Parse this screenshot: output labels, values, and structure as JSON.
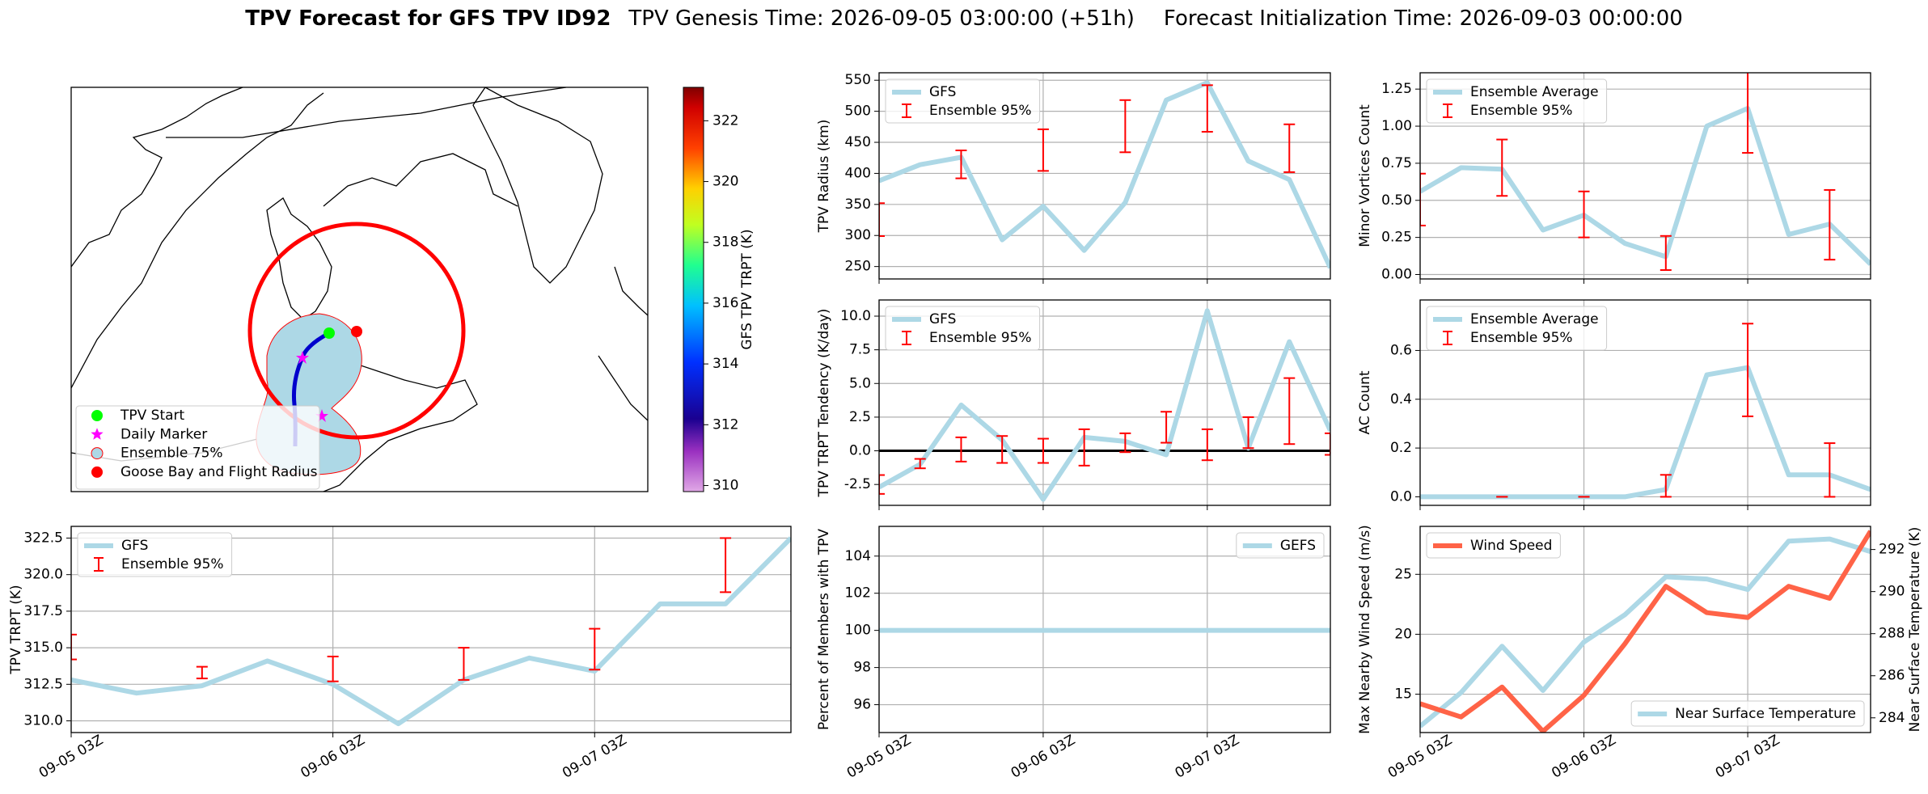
{
  "title": {
    "main": "TPV Forecast for GFS TPV ID92",
    "genesis": "TPV Genesis Time: 2026-09-05 03:00:00 (+51h)",
    "init": "Forecast Initialization Time: 2026-09-03 00:00:00"
  },
  "chart_data": [
    {
      "type": "map",
      "legend": [
        {
          "name": "TPV Start",
          "color": "#00ff00",
          "marker": "circle"
        },
        {
          "name": "Daily Marker",
          "color": "#ff00ff",
          "marker": "star"
        },
        {
          "name": "Ensemble 75%",
          "color": "#add8e6",
          "marker": "patch"
        },
        {
          "name": "Goose Bay and Flight Radius",
          "color": "#ff0000",
          "marker": "circle"
        }
      ],
      "colorbar": {
        "label": "GFS TPV TRPT (K)",
        "clim": [
          309.8,
          323.1
        ],
        "ticks": [
          310,
          312,
          314,
          316,
          318,
          320,
          322
        ]
      }
    },
    {
      "type": "line",
      "ylabel": "TPV Radius (km)",
      "ylim": [
        230,
        562
      ],
      "yticks": [
        250,
        300,
        350,
        400,
        450,
        500,
        550
      ],
      "xticks": [
        0,
        4,
        8
      ],
      "grid": true,
      "legend": "upper left",
      "series": [
        {
          "name": "GFS",
          "color": "#add8e6",
          "values": [
            388,
            414,
            426,
            293,
            347,
            276,
            353,
            518,
            546,
            420,
            390,
            248
          ]
        }
      ],
      "ensemble": {
        "name": "Ensemble 95%",
        "color": "#ff0000",
        "low": [
          299,
          null,
          392,
          null,
          404,
          null,
          434,
          null,
          467,
          null,
          402,
          null
        ],
        "high": [
          352,
          null,
          437,
          null,
          471,
          null,
          518,
          null,
          542,
          null,
          479,
          null
        ]
      }
    },
    {
      "type": "line",
      "ylabel": "Minor Vortices Count",
      "ylim": [
        -0.03,
        1.36
      ],
      "yticks": [
        {
          "value": 0,
          "label": "0.00"
        },
        0.25,
        {
          "value": 0.5,
          "label": "0.50"
        },
        0.75,
        {
          "value": 1,
          "label": "1.00"
        },
        1.25
      ],
      "xticks": [
        0,
        4,
        8
      ],
      "grid": true,
      "legend": "upper left",
      "series": [
        {
          "name": "Ensemble Average",
          "color": "#add8e6",
          "values": [
            0.56,
            0.72,
            0.71,
            0.3,
            0.4,
            0.21,
            0.12,
            1.0,
            1.12,
            0.27,
            0.34,
            0.07
          ]
        }
      ],
      "ensemble": {
        "name": "Ensemble 95%",
        "color": "#ff0000",
        "low": [
          0.33,
          null,
          0.53,
          null,
          0.25,
          null,
          0.03,
          null,
          0.82,
          null,
          0.1,
          null
        ],
        "high": [
          0.68,
          null,
          0.91,
          null,
          0.56,
          null,
          0.26,
          null,
          1.42,
          null,
          0.57,
          null
        ]
      }
    },
    {
      "type": "line",
      "ylabel": "TPV TRPT Tendency (K/day)",
      "ylim": [
        -4.05,
        11.2
      ],
      "yticks": [
        -2.5,
        {
          "value": 0,
          "label": "0.0"
        },
        2.5,
        {
          "value": 5,
          "label": "5.0"
        },
        7.5,
        {
          "value": 10,
          "label": "10.0"
        }
      ],
      "xticks": [
        0,
        4,
        8
      ],
      "grid": true,
      "legend": "upper left",
      "hline": 0,
      "series": [
        {
          "name": "GFS",
          "color": "#add8e6",
          "values": [
            -2.7,
            -1.0,
            3.4,
            0.8,
            -3.6,
            1.0,
            0.7,
            -0.3,
            10.4,
            0.2,
            8.1,
            1.5
          ]
        }
      ],
      "ensemble": {
        "name": "Ensemble 95%",
        "color": "#ff0000",
        "low": [
          -3.2,
          -1.3,
          -0.8,
          -0.9,
          -0.9,
          -1.1,
          -0.1,
          0.6,
          -0.7,
          0.2,
          0.5,
          -0.3
        ],
        "high": [
          -1.8,
          -0.6,
          1.0,
          1.1,
          0.9,
          1.6,
          1.3,
          2.9,
          1.6,
          2.5,
          5.4,
          1.3
        ]
      }
    },
    {
      "type": "line",
      "ylabel": "AC Count",
      "ylim": [
        -0.035,
        0.807
      ],
      "yticks": [
        {
          "value": 0,
          "label": "0.0"
        },
        0.2,
        0.4,
        0.6
      ],
      "xticks": [
        0,
        4,
        8
      ],
      "grid": true,
      "legend": "upper left",
      "series": [
        {
          "name": "Ensemble Average",
          "color": "#add8e6",
          "values": [
            0,
            0,
            0,
            0,
            0,
            0,
            0.03,
            0.5,
            0.53,
            0.09,
            0.09,
            0.03
          ]
        }
      ],
      "ensemble": {
        "name": "Ensemble 95%",
        "color": "#ff0000",
        "low": [
          null,
          null,
          0,
          null,
          0,
          null,
          0,
          null,
          0.33,
          null,
          0,
          null
        ],
        "high": [
          null,
          null,
          0,
          null,
          0,
          null,
          0.09,
          null,
          0.71,
          null,
          0.22,
          null
        ]
      }
    },
    {
      "type": "line",
      "ylabel": "TPV TRPT (K)",
      "ylim": [
        309.2,
        323.3
      ],
      "yticks": [
        {
          "value": 310,
          "label": "310.0"
        },
        312.5,
        {
          "value": 315,
          "label": "315.0"
        },
        317.5,
        {
          "value": 320,
          "label": "320.0"
        },
        322.5
      ],
      "grid": true,
      "legend": "upper left",
      "categories": [
        "09-05 03Z",
        null,
        null,
        null,
        "09-06 03Z",
        null,
        null,
        null,
        "09-07 03Z",
        null,
        null,
        null
      ],
      "series": [
        {
          "name": "GFS",
          "color": "#add8e6",
          "values": [
            312.8,
            311.9,
            312.4,
            314.1,
            312.5,
            309.8,
            312.8,
            314.3,
            313.4,
            318.0,
            318.0,
            322.5
          ]
        }
      ],
      "ensemble": {
        "name": "Ensemble 95%",
        "color": "#ff0000",
        "low": [
          314.2,
          null,
          312.9,
          null,
          312.7,
          null,
          312.8,
          null,
          313.5,
          null,
          318.8,
          null
        ],
        "high": [
          315.9,
          null,
          313.7,
          null,
          314.4,
          null,
          315.0,
          null,
          316.3,
          null,
          322.5,
          null
        ]
      }
    },
    {
      "type": "line",
      "ylabel": "Percent of Members with TPV",
      "ylim": [
        94.5,
        105.6
      ],
      "yticks": [
        96,
        98,
        100,
        102,
        104
      ],
      "grid": true,
      "legend": "upper right",
      "categories": [
        "09-05 03Z",
        null,
        null,
        null,
        "09-06 03Z",
        null,
        null,
        null,
        "09-07 03Z",
        null,
        null,
        null
      ],
      "series": [
        {
          "name": "GEFS",
          "color": "#add8e6",
          "values": [
            100,
            100,
            100,
            100,
            100,
            100,
            100,
            100,
            100,
            100,
            100,
            100
          ]
        }
      ]
    },
    {
      "type": "line",
      "ylabel": "Max Nearby Wind Speed (m/s)",
      "ylabel_color": "#ff6347",
      "y2label": "Near Surface Temperature (K)",
      "y2label_color": "#4169e1",
      "ylim": [
        11.8,
        29.0
      ],
      "yticks": [
        15,
        20,
        25
      ],
      "y2lim": [
        283.3,
        293.1
      ],
      "y2ticks": [
        284,
        286,
        288,
        290,
        292
      ],
      "grid": true,
      "categories": [
        "09-05 03Z",
        null,
        null,
        null,
        "09-06 03Z",
        null,
        null,
        null,
        "09-07 03Z",
        null,
        null,
        null
      ],
      "series": [
        {
          "name": "Wind Speed",
          "color": "#ff6347",
          "legend": "upper left",
          "values": [
            14.2,
            13.1,
            15.6,
            11.9,
            14.9,
            19.2,
            24.0,
            21.8,
            21.4,
            24.0,
            23.0,
            28.6
          ]
        },
        {
          "name": "Near Surface Temperature",
          "color": "#add8e6",
          "axis": "y2",
          "legend": "lower right",
          "values": [
            283.6,
            285.2,
            287.4,
            285.3,
            287.6,
            288.9,
            290.7,
            290.6,
            290.1,
            292.4,
            292.5,
            291.9
          ]
        }
      ]
    }
  ]
}
